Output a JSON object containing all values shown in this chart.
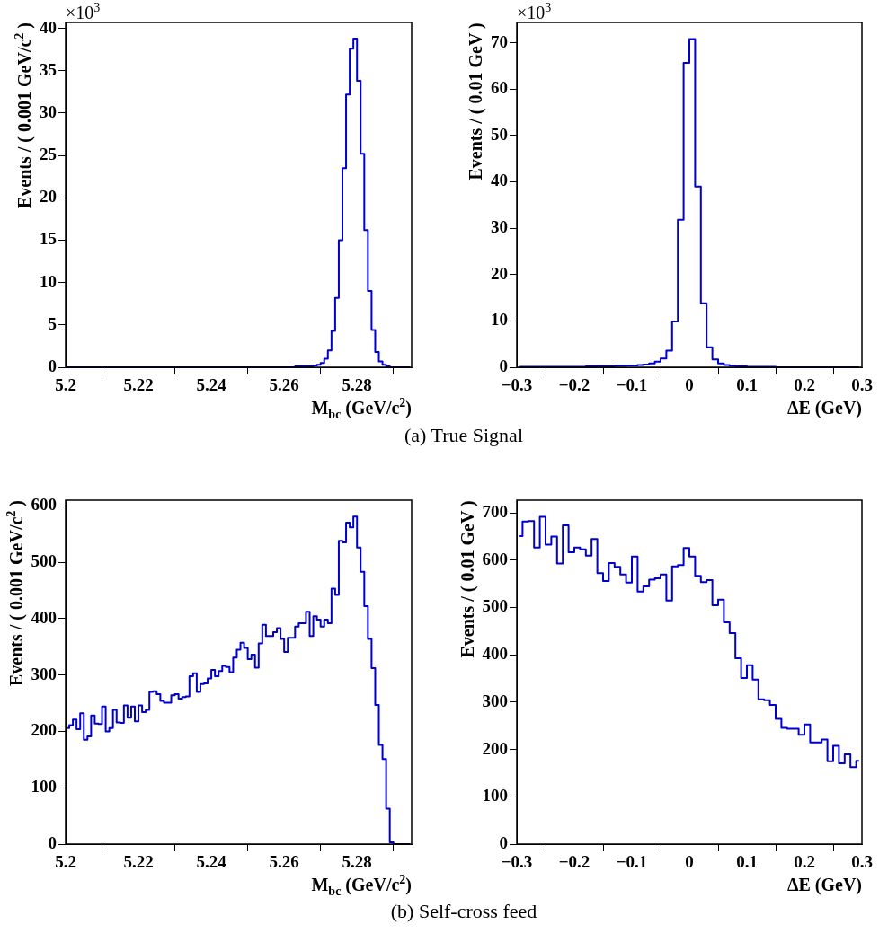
{
  "chart_data": [
    {
      "type": "histogram",
      "xlabel": "M$_{bc}$ (GeV/c$^{2}$)",
      "ylabel": "Events / ( 0.001 GeV/c$^{2}$ )",
      "subtitle": "(a)  True Signal",
      "annotations": [
        "×10$^{3}$"
      ],
      "color": "#0000cc",
      "bins": [
        5.2,
        5.201,
        5.202,
        5.203,
        5.204,
        5.205,
        5.206,
        5.207,
        5.208,
        5.209,
        5.21,
        5.211,
        5.212,
        5.213,
        5.214,
        5.215,
        5.216,
        5.217,
        5.218,
        5.219,
        5.22,
        5.221,
        5.222,
        5.223,
        5.224,
        5.225,
        5.226,
        5.227,
        5.228,
        5.229,
        5.23,
        5.231,
        5.232,
        5.233,
        5.234,
        5.235,
        5.236,
        5.237,
        5.238,
        5.239,
        5.24,
        5.241,
        5.242,
        5.243,
        5.244,
        5.245,
        5.246,
        5.247,
        5.248,
        5.249,
        5.25,
        5.251,
        5.252,
        5.253,
        5.254,
        5.255,
        5.256,
        5.257,
        5.258,
        5.259,
        5.26,
        5.261,
        5.262,
        5.263,
        5.264,
        5.265,
        5.266,
        5.267,
        5.268,
        5.269,
        5.27,
        5.271,
        5.272,
        5.273,
        5.274,
        5.275,
        5.276,
        5.277,
        5.278,
        5.279,
        5.28,
        5.281,
        5.282,
        5.283,
        5.284,
        5.285,
        5.286,
        5.287,
        5.288,
        5.289,
        5.29,
        5.291,
        5.292,
        5.293,
        5.294,
        5.295
      ],
      "values": [
        0,
        0,
        0,
        0,
        0,
        0,
        0,
        0,
        0,
        0,
        0,
        0,
        0,
        0,
        0,
        0,
        0,
        0,
        0,
        0,
        0,
        0,
        0,
        0,
        0,
        0,
        0,
        0,
        0,
        0,
        0,
        0,
        0,
        0,
        0,
        0,
        0,
        0,
        0,
        0,
        0,
        0,
        0,
        0,
        0,
        0,
        0,
        0,
        0,
        0,
        0,
        0,
        0,
        0,
        0,
        0,
        0,
        0,
        0,
        0,
        0,
        0,
        0,
        0.1,
        0.1,
        0.1,
        0.1,
        0.1,
        0.2,
        0.3,
        0.5,
        1.0,
        2.0,
        4.3,
        8.2,
        15.0,
        23.5,
        32.2,
        37.6,
        38.8,
        33.8,
        25.2,
        16.2,
        9.0,
        4.4,
        1.8,
        0.7,
        0.3,
        0.1,
        0,
        0,
        0,
        0,
        0,
        0
      ],
      "xlim": [
        5.2,
        5.295
      ],
      "xticks": [
        5.2,
        5.22,
        5.24,
        5.26,
        5.28
      ],
      "ylim": [
        0,
        40.7
      ],
      "yticks": [
        0,
        5,
        10,
        15,
        20,
        25,
        30,
        35,
        40
      ]
    },
    {
      "type": "histogram",
      "xlabel": "ΔE (GeV)",
      "ylabel": "Events / ( 0.01 GeV )",
      "annotations": [
        "×10$^{3}$"
      ],
      "color": "#0000cc",
      "bins": [
        -0.3,
        -0.29,
        -0.28,
        -0.27,
        -0.26,
        -0.25,
        -0.24,
        -0.23,
        -0.22,
        -0.21,
        -0.2,
        -0.19,
        -0.18,
        -0.17,
        -0.16,
        -0.15,
        -0.14,
        -0.13,
        -0.12,
        -0.11,
        -0.1,
        -0.09,
        -0.08,
        -0.07,
        -0.06,
        -0.05,
        -0.04,
        -0.03,
        -0.02,
        -0.01,
        0,
        0.01,
        0.02,
        0.03,
        0.04,
        0.05,
        0.06,
        0.07,
        0.08,
        0.09,
        0.1,
        0.11,
        0.12,
        0.13,
        0.14,
        0.15,
        0.16,
        0.17,
        0.18,
        0.19,
        0.2,
        0.21,
        0.22,
        0.23,
        0.24,
        0.25,
        0.26,
        0.27,
        0.28,
        0.29,
        0.3
      ],
      "values": [
        0.1,
        0.1,
        0.1,
        0.1,
        0.1,
        0.1,
        0.1,
        0.1,
        0.1,
        0.1,
        0.1,
        0.1,
        0.2,
        0.2,
        0.2,
        0.2,
        0.2,
        0.3,
        0.3,
        0.4,
        0.4,
        0.5,
        0.6,
        0.8,
        1.2,
        1.9,
        3.6,
        9.9,
        31.8,
        65.7,
        70.8,
        39.0,
        13.8,
        4.3,
        1.7,
        0.8,
        0.5,
        0.3,
        0.2,
        0.2,
        0.1,
        0.1,
        0.1,
        0.1,
        0.1,
        0,
        0,
        0,
        0,
        0,
        0,
        0,
        0,
        0,
        0,
        0,
        0,
        0,
        0,
        0
      ],
      "xlim": [
        -0.3,
        0.3
      ],
      "xticks": [
        {
          "value": -0.3,
          "label": "−0.3"
        },
        {
          "value": -0.2,
          "label": "−0.2"
        },
        {
          "value": -0.1,
          "label": "−0.1"
        },
        0,
        0.1,
        0.2,
        0.3
      ],
      "ylim": [
        0,
        74.4
      ],
      "yticks": [
        0,
        10,
        20,
        30,
        40,
        50,
        60,
        70
      ]
    },
    {
      "type": "histogram",
      "xlabel": "M$_{bc}$ (GeV/c$^{2}$)",
      "ylabel": "Events / ( 0.001 GeV/c$^{2}$ )",
      "subtitle": "(b)  Self-cross feed",
      "color": "#0000cc",
      "bins": [
        5.2,
        5.201,
        5.202,
        5.203,
        5.204,
        5.205,
        5.206,
        5.207,
        5.208,
        5.209,
        5.21,
        5.211,
        5.212,
        5.213,
        5.214,
        5.215,
        5.216,
        5.217,
        5.218,
        5.219,
        5.22,
        5.221,
        5.222,
        5.223,
        5.224,
        5.225,
        5.226,
        5.227,
        5.228,
        5.229,
        5.23,
        5.231,
        5.232,
        5.233,
        5.234,
        5.235,
        5.236,
        5.237,
        5.238,
        5.239,
        5.24,
        5.241,
        5.242,
        5.243,
        5.244,
        5.245,
        5.246,
        5.247,
        5.248,
        5.249,
        5.25,
        5.251,
        5.252,
        5.253,
        5.254,
        5.255,
        5.256,
        5.257,
        5.258,
        5.259,
        5.26,
        5.261,
        5.262,
        5.263,
        5.264,
        5.265,
        5.266,
        5.267,
        5.268,
        5.269,
        5.27,
        5.271,
        5.272,
        5.273,
        5.274,
        5.275,
        5.276,
        5.277,
        5.278,
        5.279,
        5.28,
        5.281,
        5.282,
        5.283,
        5.284,
        5.285,
        5.286,
        5.287,
        5.288,
        5.289,
        5.29,
        5.291,
        5.292,
        5.293,
        5.294,
        5.295
      ],
      "values": [
        206,
        211,
        221,
        204,
        232,
        185,
        191,
        228,
        214,
        213,
        244,
        200,
        206,
        238,
        216,
        215,
        246,
        224,
        244,
        218,
        246,
        234,
        238,
        270,
        271,
        266,
        254,
        251,
        251,
        264,
        266,
        258,
        261,
        262,
        298,
        303,
        270,
        284,
        285,
        294,
        309,
        298,
        307,
        316,
        314,
        305,
        331,
        345,
        357,
        348,
        328,
        336,
        313,
        356,
        389,
        369,
        369,
        376,
        383,
        364,
        341,
        366,
        366,
        386,
        392,
        392,
        412,
        369,
        404,
        398,
        386,
        398,
        392,
        453,
        442,
        538,
        535,
        570,
        562,
        581,
        526,
        483,
        422,
        364,
        312,
        247,
        176,
        151,
        63,
        3,
        0,
        0,
        0,
        0,
        0
      ],
      "xlim": [
        5.2,
        5.295
      ],
      "xticks": [
        5.2,
        5.22,
        5.24,
        5.26,
        5.28
      ],
      "ylim": [
        0,
        610
      ],
      "yticks": [
        0,
        100,
        200,
        300,
        400,
        500,
        600
      ]
    },
    {
      "type": "histogram",
      "xlabel": "ΔE (GeV)",
      "ylabel": "Events / ( 0.01 GeV )",
      "color": "#0000cc",
      "bins": [
        -0.3,
        -0.29,
        -0.28,
        -0.27,
        -0.26,
        -0.25,
        -0.24,
        -0.23,
        -0.22,
        -0.21,
        -0.2,
        -0.19,
        -0.18,
        -0.17,
        -0.16,
        -0.15,
        -0.14,
        -0.13,
        -0.12,
        -0.11,
        -0.1,
        -0.09,
        -0.08,
        -0.07,
        -0.06,
        -0.05,
        -0.04,
        -0.03,
        -0.02,
        -0.01,
        0,
        0.01,
        0.02,
        0.03,
        0.04,
        0.05,
        0.06,
        0.07,
        0.08,
        0.09,
        0.1,
        0.11,
        0.12,
        0.13,
        0.14,
        0.15,
        0.16,
        0.17,
        0.18,
        0.19,
        0.2,
        0.21,
        0.22,
        0.23,
        0.24,
        0.25,
        0.26,
        0.27,
        0.28,
        0.29,
        0.3
      ],
      "values": [
        651,
        682,
        683,
        627,
        692,
        633,
        650,
        593,
        674,
        617,
        627,
        623,
        610,
        645,
        573,
        556,
        594,
        586,
        570,
        553,
        608,
        534,
        545,
        559,
        562,
        570,
        515,
        587,
        590,
        626,
        608,
        567,
        554,
        558,
        505,
        517,
        469,
        446,
        393,
        351,
        378,
        348,
        306,
        304,
        294,
        265,
        246,
        244,
        244,
        231,
        253,
        215,
        215,
        221,
        175,
        208,
        171,
        190,
        163,
        176
      ],
      "xlim": [
        -0.3,
        0.3
      ],
      "xticks": [
        {
          "value": -0.3,
          "label": "−0.3"
        },
        {
          "value": -0.2,
          "label": "−0.2"
        },
        {
          "value": -0.1,
          "label": "−0.1"
        },
        0,
        0.1,
        0.2,
        0.3
      ],
      "ylim": [
        0,
        727
      ],
      "yticks": [
        0,
        100,
        200,
        300,
        400,
        500,
        600,
        700
      ]
    }
  ]
}
